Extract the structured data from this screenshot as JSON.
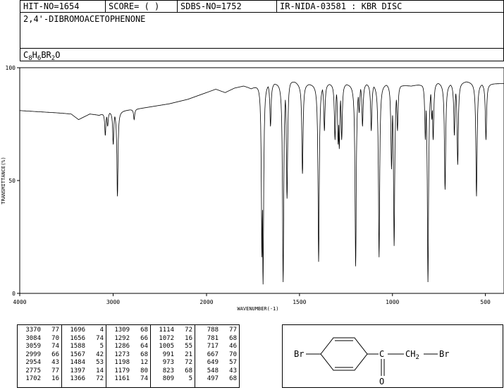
{
  "header": {
    "hit_no": "HIT-NO=1654",
    "score": "SCORE=  (   )",
    "sdbs_no": "SDBS-NO=1752",
    "ir_nida": "IR-NIDA-03581 : KBR DISC"
  },
  "compound_name": "2,4'-DIBROMOACETOPHENONE",
  "formula": {
    "c": "C",
    "c_n": "8",
    "h": "H",
    "h_n": "6",
    "br": "BR",
    "br_n": "2",
    "o": "O"
  },
  "structure": {
    "br_left": "Br",
    "carbonyl_c": "C",
    "ch2": "CH",
    "ch2_n": "2",
    "br_right": "Br",
    "oxygen": "O"
  },
  "chart_data": {
    "type": "line",
    "xlabel": "WAVENUMBER(-1)",
    "ylabel": "TRANSMITTANCE(%)",
    "xlim": [
      4000,
      400
    ],
    "ylim": [
      0,
      100
    ],
    "x_ticks": [
      "4000",
      "3000",
      "2000",
      "1500",
      "1000",
      "500"
    ],
    "y_ticks": [
      "0",
      "50",
      "100"
    ],
    "baseline": [
      [
        4000,
        81
      ],
      [
        3800,
        80.5
      ],
      [
        3600,
        80
      ],
      [
        3450,
        79.5
      ],
      [
        3370,
        77
      ],
      [
        3250,
        79.5
      ],
      [
        3150,
        79
      ],
      [
        3100,
        80
      ],
      [
        2700,
        82
      ],
      [
        2400,
        84
      ],
      [
        2200,
        86
      ],
      [
        2000,
        89
      ],
      [
        1950,
        90.5
      ],
      [
        1900,
        89
      ],
      [
        1850,
        91
      ],
      [
        1800,
        92
      ],
      [
        1760,
        91
      ],
      [
        1720,
        93
      ],
      [
        1700,
        94
      ],
      [
        1650,
        93
      ],
      [
        1600,
        94
      ],
      [
        1550,
        95
      ],
      [
        1500,
        93
      ],
      [
        1450,
        93
      ],
      [
        1400,
        93
      ],
      [
        1300,
        93
      ],
      [
        1200,
        93
      ],
      [
        1100,
        93
      ],
      [
        1000,
        93
      ],
      [
        900,
        92
      ],
      [
        800,
        94
      ],
      [
        700,
        93
      ],
      [
        600,
        94
      ],
      [
        500,
        93
      ],
      [
        450,
        93
      ],
      [
        400,
        93
      ]
    ],
    "peaks": [
      {
        "wn": 3370,
        "t": 77
      },
      {
        "wn": 3084,
        "t": 70
      },
      {
        "wn": 3059,
        "t": 74
      },
      {
        "wn": 2999,
        "t": 66
      },
      {
        "wn": 2954,
        "t": 43
      },
      {
        "wn": 2775,
        "t": 77
      },
      {
        "wn": 1702,
        "t": 16
      },
      {
        "wn": 1696,
        "t": 4
      },
      {
        "wn": 1656,
        "t": 74
      },
      {
        "wn": 1588,
        "t": 5
      },
      {
        "wn": 1567,
        "t": 42
      },
      {
        "wn": 1484,
        "t": 53
      },
      {
        "wn": 1397,
        "t": 14
      },
      {
        "wn": 1366,
        "t": 72
      },
      {
        "wn": 1309,
        "t": 68
      },
      {
        "wn": 1292,
        "t": 66
      },
      {
        "wn": 1286,
        "t": 64
      },
      {
        "wn": 1273,
        "t": 68
      },
      {
        "wn": 1198,
        "t": 12
      },
      {
        "wn": 1179,
        "t": 80
      },
      {
        "wn": 1161,
        "t": 74
      },
      {
        "wn": 1114,
        "t": 72
      },
      {
        "wn": 1072,
        "t": 16
      },
      {
        "wn": 1005,
        "t": 55
      },
      {
        "wn": 991,
        "t": 21
      },
      {
        "wn": 973,
        "t": 72
      },
      {
        "wn": 823,
        "t": 68
      },
      {
        "wn": 809,
        "t": 5
      },
      {
        "wn": 788,
        "t": 77
      },
      {
        "wn": 781,
        "t": 68
      },
      {
        "wn": 717,
        "t": 46
      },
      {
        "wn": 667,
        "t": 70
      },
      {
        "wn": 649,
        "t": 57
      },
      {
        "wn": 548,
        "t": 43
      },
      {
        "wn": 497,
        "t": 68
      }
    ]
  },
  "peak_table": [
    [
      [
        "3370",
        "77"
      ],
      [
        "3084",
        "70"
      ],
      [
        "3059",
        "74"
      ],
      [
        "2999",
        "66"
      ],
      [
        "2954",
        "43"
      ],
      [
        "2775",
        "77"
      ],
      [
        "1702",
        "16"
      ]
    ],
    [
      [
        "1696",
        "4"
      ],
      [
        "1656",
        "74"
      ],
      [
        "1588",
        "5"
      ],
      [
        "1567",
        "42"
      ],
      [
        "1484",
        "53"
      ],
      [
        "1397",
        "14"
      ],
      [
        "1366",
        "72"
      ]
    ],
    [
      [
        "1309",
        "68"
      ],
      [
        "1292",
        "66"
      ],
      [
        "1286",
        "64"
      ],
      [
        "1273",
        "68"
      ],
      [
        "1198",
        "12"
      ],
      [
        "1179",
        "80"
      ],
      [
        "1161",
        "74"
      ]
    ],
    [
      [
        "1114",
        "72"
      ],
      [
        "1072",
        "16"
      ],
      [
        "1005",
        "55"
      ],
      [
        "991",
        "21"
      ],
      [
        "973",
        "72"
      ],
      [
        "823",
        "68"
      ],
      [
        "809",
        "5"
      ]
    ],
    [
      [
        "788",
        "77"
      ],
      [
        "781",
        "68"
      ],
      [
        "717",
        "46"
      ],
      [
        "667",
        "70"
      ],
      [
        "649",
        "57"
      ],
      [
        "548",
        "43"
      ],
      [
        "497",
        "68"
      ]
    ]
  ]
}
